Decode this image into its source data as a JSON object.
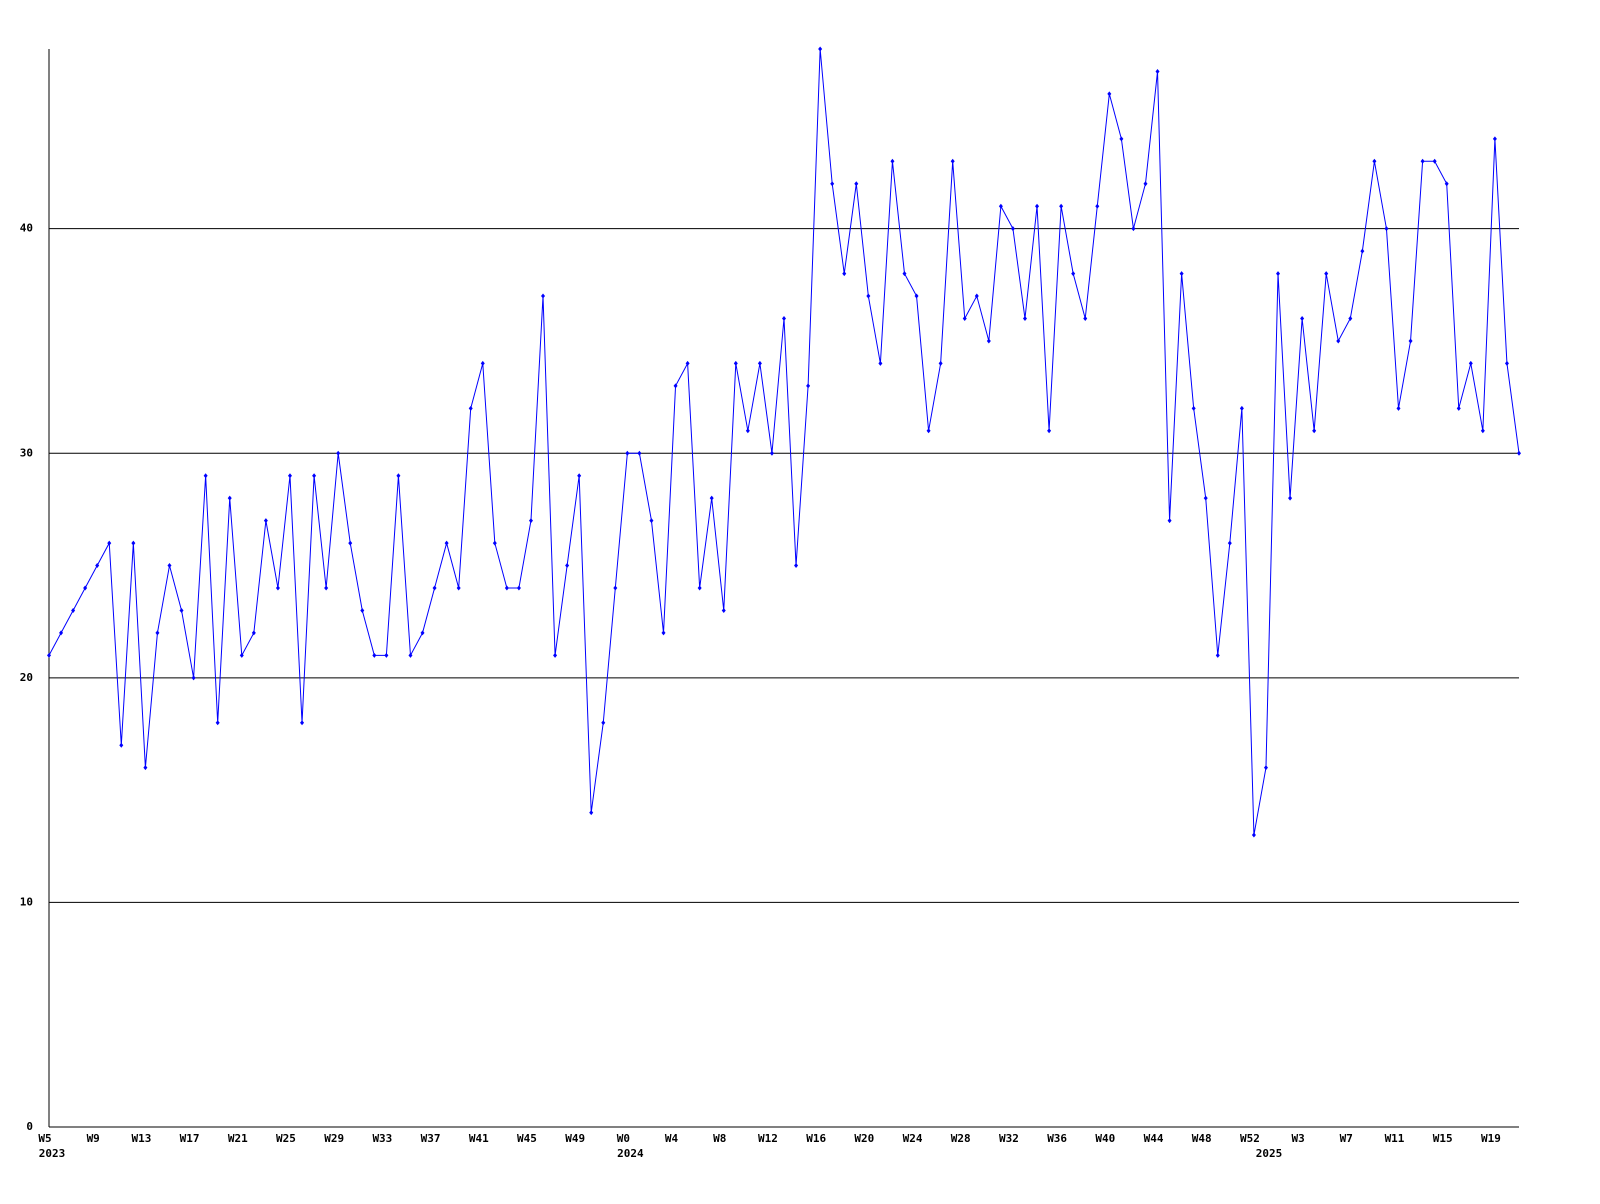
{
  "chart_data": {
    "type": "line",
    "categories": [
      "W5",
      null,
      null,
      null,
      "W9",
      null,
      null,
      null,
      "W13",
      null,
      null,
      null,
      "W17",
      null,
      null,
      null,
      "W21",
      null,
      null,
      null,
      "W25",
      null,
      null,
      null,
      "W29",
      null,
      null,
      null,
      "W33",
      null,
      null,
      null,
      "W37",
      null,
      null,
      null,
      "W41",
      null,
      null,
      null,
      "W45",
      null,
      null,
      null,
      "W49",
      null,
      null,
      null,
      "W0",
      null,
      null,
      null,
      "W4",
      null,
      null,
      null,
      "W8",
      null,
      null,
      null,
      "W12",
      null,
      null,
      null,
      "W16",
      null,
      null,
      null,
      "W20",
      null,
      null,
      null,
      "W24",
      null,
      null,
      null,
      "W28",
      null,
      null,
      null,
      "W32",
      null,
      null,
      null,
      "W36",
      null,
      null,
      null,
      "W40",
      null,
      null,
      null,
      "W44",
      null,
      null,
      null,
      "W48",
      null,
      null,
      null,
      "W52",
      null,
      null,
      null,
      "W3",
      null,
      null,
      null,
      "W7",
      null,
      null,
      null,
      "W11",
      null,
      null,
      null,
      "W15",
      null,
      null,
      null,
      "W19",
      null,
      null
    ],
    "category_years": [
      "2023",
      null,
      null,
      null,
      null,
      null,
      null,
      null,
      null,
      null,
      null,
      null,
      null,
      null,
      null,
      null,
      null,
      null,
      null,
      null,
      null,
      null,
      null,
      null,
      null,
      null,
      null,
      null,
      null,
      null,
      null,
      null,
      null,
      null,
      null,
      null,
      null,
      null,
      null,
      null,
      null,
      null,
      null,
      null,
      null,
      null,
      null,
      null,
      "2024",
      null,
      null,
      null,
      null,
      null,
      null,
      null,
      null,
      null,
      null,
      null,
      null,
      null,
      null,
      null,
      null,
      null,
      null,
      null,
      null,
      null,
      null,
      null,
      null,
      null,
      null,
      null,
      null,
      null,
      null,
      null,
      null,
      null,
      null,
      null,
      null,
      null,
      null,
      null,
      null,
      null,
      null,
      null,
      null,
      null,
      null,
      null,
      null,
      null,
      null,
      null,
      null,
      "2025",
      null,
      null,
      null,
      null,
      null,
      null,
      null,
      null,
      null,
      null,
      null,
      null,
      null,
      null,
      null,
      null,
      null,
      null,
      null,
      null,
      null
    ],
    "series": [
      {
        "color": "#0000ff",
        "values": [
          21,
          22,
          23,
          24,
          25,
          26,
          17,
          26,
          16,
          22,
          25,
          23,
          20,
          29,
          18,
          28,
          21,
          22,
          27,
          24,
          29,
          18,
          29,
          24,
          30,
          26,
          23,
          21,
          21,
          29,
          21,
          22,
          24,
          26,
          24,
          32,
          34,
          26,
          24,
          24,
          27,
          37,
          21,
          25,
          29,
          14,
          18,
          24,
          30,
          30,
          27,
          22,
          33,
          34,
          24,
          28,
          23,
          34,
          31,
          34,
          30,
          36,
          25,
          33,
          48,
          42,
          38,
          42,
          37,
          34,
          43,
          38,
          37,
          31,
          34,
          43,
          36,
          37,
          35,
          41,
          40,
          36,
          41,
          31,
          41,
          38,
          36,
          41,
          46,
          44,
          40,
          42,
          47,
          27,
          38,
          32,
          28,
          21,
          26,
          32,
          13,
          16,
          38,
          28,
          36,
          31,
          38,
          35,
          36,
          39,
          43,
          40,
          32,
          35,
          43,
          43,
          42,
          32,
          34,
          31,
          44,
          34,
          30
        ]
      }
    ],
    "ylim": [
      0,
      48
    ],
    "yticks": [
      0,
      10,
      20,
      30,
      40
    ],
    "grid": true
  }
}
